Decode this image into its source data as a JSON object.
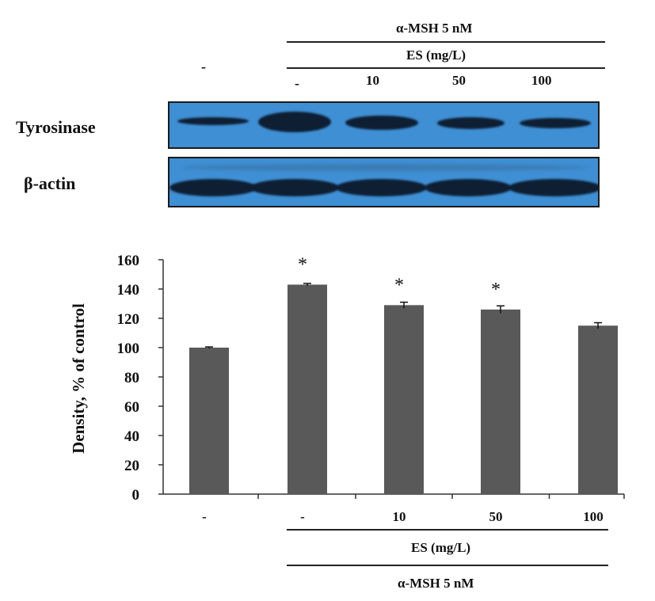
{
  "blot": {
    "header_treatment": "α-MSH  5 nM",
    "header_es": "ES (mg/L)",
    "lanes": [
      "-",
      "-",
      "10",
      "50",
      "100"
    ],
    "row_labels": {
      "tyrosinase": "Tyrosinase",
      "actin": "β-actin"
    },
    "band_color": "#0e1f33",
    "background_color": "#3e8fd4"
  },
  "chart_data": {
    "type": "bar",
    "categories": [
      "-",
      "-",
      "10",
      "50",
      "100"
    ],
    "values": [
      100,
      143,
      129,
      126,
      115
    ],
    "errors": [
      0.5,
      0.8,
      2,
      2.5,
      2
    ],
    "significance": [
      "",
      "*",
      "*",
      "*",
      ""
    ],
    "xlabel": "",
    "ylabel": "Density, % of control",
    "ylim": [
      0,
      160
    ],
    "yticks": [
      "0",
      "20",
      "40",
      "60",
      "80",
      "100",
      "120",
      "140",
      "160"
    ],
    "bar_color": "#595959",
    "grid": false,
    "legend": "none",
    "group_label_es": "ES (mg/L)",
    "group_label_treatment": "α-MSH  5 nM"
  }
}
